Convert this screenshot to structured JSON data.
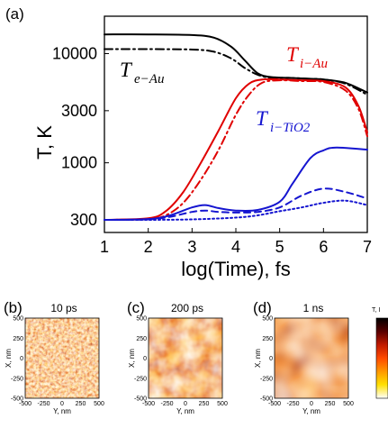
{
  "chart_data": [
    {
      "type": "line",
      "panel_label": "(a)",
      "xlabel": "log(Time), fs",
      "ylabel": "T, K",
      "xlim": [
        1,
        7
      ],
      "ylim": [
        230,
        22000
      ],
      "yscale": "log",
      "xticks": [
        "1",
        "2",
        "3",
        "4",
        "5",
        "6",
        "7"
      ],
      "xtick_values": [
        1,
        2,
        3,
        4,
        5,
        6,
        7
      ],
      "yticks": [
        "300",
        "1000",
        "3000",
        "10000"
      ],
      "ytick_values": [
        300,
        1000,
        3000,
        10000
      ],
      "grid": false,
      "annotations": [
        {
          "text": "T",
          "sub": "e−Au",
          "color": "#000000"
        },
        {
          "text": "T",
          "sub": "i−Au",
          "color": "#e00000"
        },
        {
          "text": "T",
          "sub": "i−TiO2",
          "color": "#1515d0"
        }
      ],
      "series": [
        {
          "color": "#000000",
          "dash": "solid",
          "x": [
            1,
            2,
            3,
            3.5,
            3.9,
            4.2,
            4.5,
            4.8,
            5.2,
            5.6,
            6,
            6.5,
            7
          ],
          "values": [
            15000,
            15000,
            14800,
            14000,
            11500,
            8700,
            6600,
            6100,
            6000,
            5900,
            5800,
            5400,
            4400
          ]
        },
        {
          "color": "#000000",
          "dash": "dashdot",
          "x": [
            1,
            2,
            3,
            3.5,
            3.9,
            4.2,
            4.5,
            4.8,
            5.2,
            5.6,
            6,
            6.5,
            7
          ],
          "values": [
            11000,
            11000,
            10900,
            10400,
            9000,
            7400,
            6400,
            6000,
            6000,
            5900,
            5800,
            5300,
            4200
          ]
        },
        {
          "color": "#e00000",
          "dash": "solid",
          "x": [
            1,
            2,
            2.4,
            2.8,
            3.2,
            3.6,
            4,
            4.3,
            4.6,
            5,
            5.5,
            6,
            6.5,
            6.8,
            7
          ],
          "values": [
            300,
            310,
            360,
            540,
            1000,
            1950,
            3900,
            5300,
            5800,
            5800,
            5700,
            5600,
            4900,
            3300,
            1900
          ]
        },
        {
          "color": "#e00000",
          "dash": "dashdot",
          "x": [
            1,
            2,
            2.4,
            2.8,
            3.2,
            3.6,
            4,
            4.3,
            4.6,
            5,
            5.5,
            6,
            6.5,
            6.8,
            7
          ],
          "values": [
            300,
            305,
            330,
            430,
            700,
            1300,
            2750,
            4200,
            5400,
            5700,
            5600,
            5500,
            4600,
            3100,
            1750
          ]
        },
        {
          "color": "#1515d0",
          "dash": "solid",
          "x": [
            1,
            2,
            2.5,
            3,
            3.3,
            3.6,
            4,
            4.5,
            5,
            5.3,
            5.7,
            6,
            6.3,
            7
          ],
          "values": [
            300,
            305,
            330,
            390,
            410,
            385,
            365,
            370,
            440,
            650,
            1100,
            1300,
            1380,
            1320
          ]
        },
        {
          "color": "#1515d0",
          "dash": "dashed",
          "x": [
            1,
            2,
            2.5,
            3,
            3.3,
            3.6,
            4,
            4.5,
            5,
            5.5,
            6,
            6.5,
            7
          ],
          "values": [
            300,
            303,
            320,
            355,
            365,
            355,
            350,
            355,
            390,
            500,
            580,
            540,
            470
          ]
        },
        {
          "color": "#1515d0",
          "dash": "dotted",
          "x": [
            1,
            2,
            3,
            4,
            4.5,
            5,
            5.5,
            6,
            6.5,
            7
          ],
          "values": [
            300,
            300,
            303,
            315,
            330,
            360,
            390,
            430,
            450,
            410
          ]
        }
      ]
    },
    {
      "type": "heatmap",
      "panel_label": "(b)",
      "title": "10 ps",
      "xlabel": "Y, nm",
      "ylabel": "X, nm",
      "xticks": [
        "-500",
        "-250",
        "0",
        "250",
        "500"
      ],
      "yticks": [
        "500",
        "250",
        "0",
        "-250",
        "-500"
      ],
      "texture": "speckled"
    },
    {
      "type": "heatmap",
      "panel_label": "(c)",
      "title": "200 ps",
      "xlabel": "Y, nm",
      "ylabel": "X, nm",
      "xticks": [
        "-500",
        "-250",
        "0",
        "250",
        "500"
      ],
      "yticks": [
        "500",
        "250",
        "0",
        "-250",
        "-500"
      ],
      "texture": "blotchy"
    },
    {
      "type": "heatmap",
      "panel_label": "(d)",
      "title": "1 ns",
      "xlabel": "Y, nm",
      "ylabel": "X, nm",
      "xticks": [
        "-500",
        "-250",
        "0",
        "250",
        "500"
      ],
      "yticks": [
        "500",
        "250",
        "0",
        "-250",
        "-500"
      ],
      "texture": "smooth"
    }
  ],
  "colorbar": {
    "label": "T, I",
    "colors": [
      "#000000",
      "#5a0000",
      "#c01a00",
      "#ff4a00",
      "#ff9a00",
      "#ffe000",
      "#ffffff"
    ]
  }
}
